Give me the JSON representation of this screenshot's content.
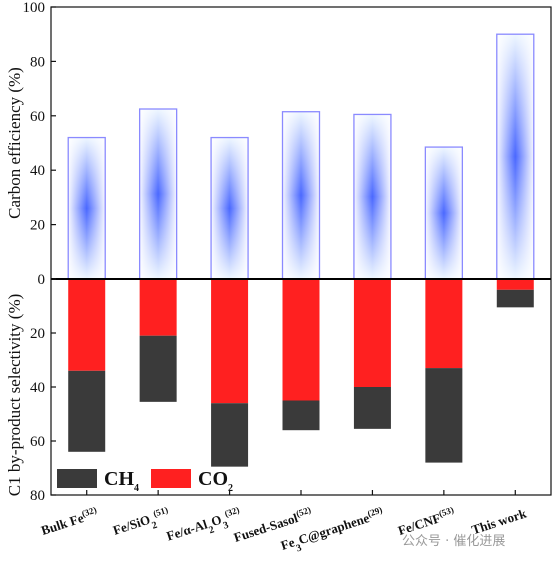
{
  "chart_data": {
    "type": "bar",
    "categories": [
      {
        "label": "Bulk Fe",
        "ref": "(32)"
      },
      {
        "label": "Fe/SiO2",
        "ref": "(51)"
      },
      {
        "label": "Fe/α-Al2O3",
        "ref": "(32)"
      },
      {
        "label": "Fused-Sasol",
        "ref": "(52)"
      },
      {
        "label": "Fe3C@graphene",
        "ref": "(29)"
      },
      {
        "label": "Fe/CNF",
        "ref": "(53)"
      },
      {
        "label": "This work",
        "ref": ""
      }
    ],
    "upper_panel": {
      "ylabel": "Carbon efficiency (%)",
      "ylim": [
        0,
        100
      ],
      "yticks": [
        0,
        20,
        40,
        60,
        80,
        100
      ],
      "values": [
        52,
        62.5,
        52,
        61.5,
        60.5,
        48.5,
        90
      ]
    },
    "lower_panel": {
      "ylabel": "C1 by-product selectivity (%)",
      "ylim": [
        0,
        80
      ],
      "yticks": [
        0,
        20,
        40,
        60,
        80
      ],
      "inverted": true,
      "series": [
        {
          "name": "CO2",
          "values": [
            34,
            21,
            46,
            45,
            40,
            33,
            4
          ]
        },
        {
          "name": "CH4",
          "values": [
            30,
            24.5,
            23.5,
            11,
            15.5,
            35,
            6.5
          ]
        }
      ]
    },
    "legend": {
      "placement": "bottom-left",
      "items": [
        {
          "label": "CH4",
          "color": "#3a3a3a"
        },
        {
          "label": "CO2",
          "color": "#ff2020"
        }
      ]
    },
    "colors": {
      "ch4": "#3a3a3a",
      "co2": "#ff2020",
      "upper_edge": "#8a8aff",
      "upper_light": "#eaf5ff",
      "upper_dark": "#3d5cff"
    }
  },
  "watermark": {
    "text": "公众号 · 催化进展"
  }
}
